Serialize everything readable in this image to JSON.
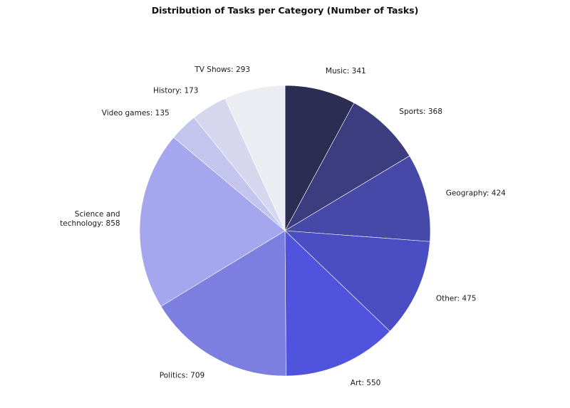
{
  "chart_data": {
    "type": "pie",
    "title": "Distribution of Tasks per Category (Number of Tasks)",
    "slices": [
      {
        "label": "Music",
        "value": 341,
        "color": "#2c2d52",
        "text": "Music: 341"
      },
      {
        "label": "Sports",
        "value": 368,
        "color": "#3b3d7e",
        "text": "Sports: 368"
      },
      {
        "label": "Geography",
        "value": 424,
        "color": "#4749a8",
        "text": "Geography: 424"
      },
      {
        "label": "Other",
        "value": 475,
        "color": "#4b4ec3",
        "text": "Other: 475"
      },
      {
        "label": "Art",
        "value": 550,
        "color": "#5053dd",
        "text": "Art: 550"
      },
      {
        "label": "Politics",
        "value": 709,
        "color": "#7c7ee0",
        "text": "Politics: 709"
      },
      {
        "label": "Science and technology",
        "value": 858,
        "color": "#a4a6ee",
        "text": [
          "Science and",
          "technology: 858"
        ]
      },
      {
        "label": "Video games",
        "value": 135,
        "color": "#c4c5ef",
        "text": "Video games: 135"
      },
      {
        "label": "History",
        "value": 173,
        "color": "#d6d7ee",
        "text": "History: 173"
      },
      {
        "label": "TV Shows",
        "value": 293,
        "color": "#ececf3",
        "text": "TV Shows: 293"
      }
    ],
    "start": "top",
    "direction": "clockwise",
    "legend": "none"
  }
}
